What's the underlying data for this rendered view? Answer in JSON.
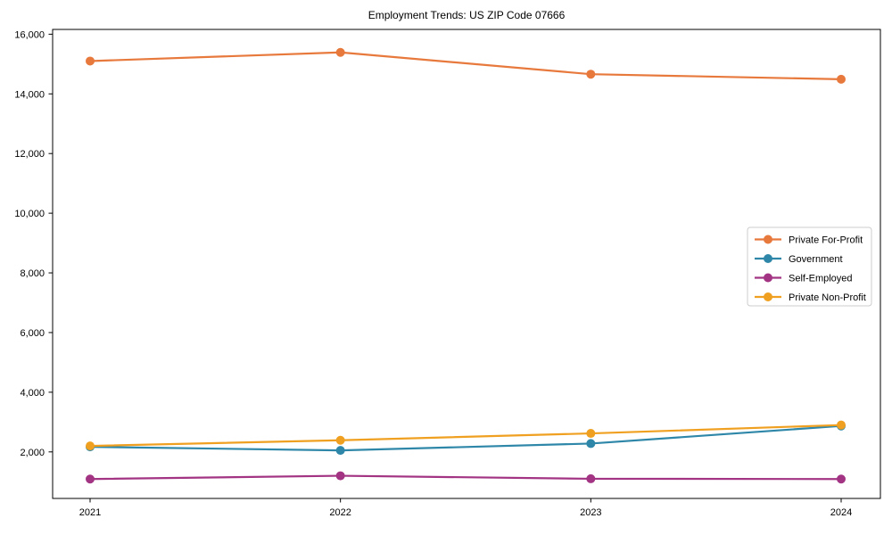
{
  "chart_data": {
    "type": "line",
    "title": "Employment Trends: US ZIP Code 07666",
    "xlabel": "",
    "ylabel": "",
    "x": [
      2021,
      2022,
      2023,
      2024
    ],
    "x_tick_labels": [
      "2021",
      "2022",
      "2023",
      "2024"
    ],
    "series": [
      {
        "name": "Private For-Profit",
        "color": "#e8793d",
        "values": [
          15100,
          15390,
          14660,
          14490
        ]
      },
      {
        "name": "Government",
        "color": "#2e87a8",
        "values": [
          2170,
          2050,
          2280,
          2870
        ]
      },
      {
        "name": "Self-Employed",
        "color": "#a23483",
        "values": [
          1090,
          1200,
          1100,
          1090
        ]
      },
      {
        "name": "Private Non-Profit",
        "color": "#f0a020",
        "values": [
          2200,
          2390,
          2620,
          2900
        ]
      }
    ],
    "yticks": [
      2000,
      4000,
      6000,
      8000,
      10000,
      12000,
      14000,
      16000
    ],
    "ylim": [
      440,
      16160
    ],
    "grid": false,
    "legend_position": "center right",
    "marker": "circle",
    "background_color": "#ffffff",
    "axis_color": "#000000",
    "legend_border_color": "#cccccc"
  }
}
